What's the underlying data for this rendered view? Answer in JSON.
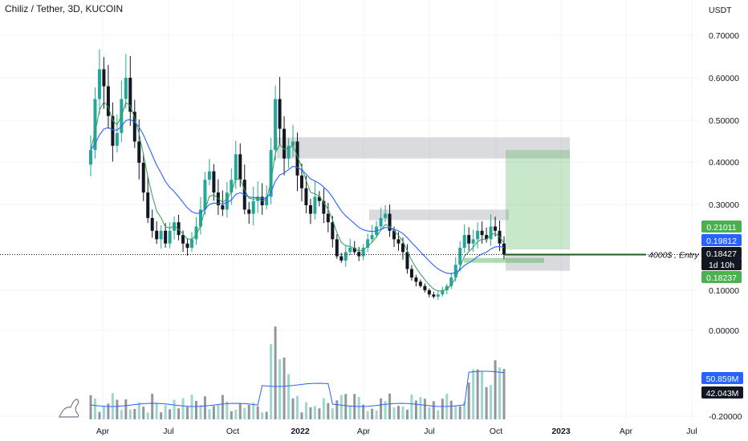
{
  "header": {
    "symbol": "Chiliz / Tether",
    "interval": "3D",
    "exchange": "KUCOIN"
  },
  "colors": {
    "up": "#26a69a",
    "down": "#131722",
    "ema_fast": "#2e9e4f",
    "ema_slow": "#2962ff",
    "volume_ma": "#2962ff",
    "zone": "#9598a1",
    "target": "#4caf50",
    "tag_green": "#4caf50",
    "tag_blue": "#2962ff",
    "tag_black": "#131722"
  },
  "chart_data": {
    "type": "candlestick",
    "currency_label": "USDT",
    "y_ticks": [
      "0.70000",
      "0.60000",
      "0.50000",
      "0.40000",
      "0.30000",
      "0.10000",
      "0.00000",
      "-0.20000"
    ],
    "x_ticks": [
      "Apr",
      "Jul",
      "Oct",
      "2022",
      "Apr",
      "Jul",
      "Oct",
      "2023",
      "Apr",
      "Jul"
    ],
    "ylim": [
      -0.2,
      0.76
    ],
    "price_tags": {
      "ema_fast": "0.21011",
      "ema_slow": "0.19812",
      "last_price": "0.18427",
      "countdown": "1d 10h",
      "entry_level": "0.18237"
    },
    "volume_tags": {
      "volume_ma": "50.859M",
      "volume_last": "42.043M"
    },
    "annotation": "4000$ , Entry",
    "series": [
      {
        "name": "price",
        "values": [
          0.43,
          0.55,
          0.62,
          0.58,
          0.51,
          0.44,
          0.47,
          0.55,
          0.6,
          0.52,
          0.45,
          0.4,
          0.33,
          0.27,
          0.24,
          0.22,
          0.24,
          0.21,
          0.24,
          0.26,
          0.23,
          0.21,
          0.2,
          0.22,
          0.25,
          0.29,
          0.36,
          0.38,
          0.33,
          0.3,
          0.29,
          0.33,
          0.36,
          0.42,
          0.36,
          0.29,
          0.28,
          0.31,
          0.32,
          0.3,
          0.32,
          0.43,
          0.55,
          0.48,
          0.41,
          0.44,
          0.45,
          0.37,
          0.34,
          0.3,
          0.28,
          0.32,
          0.31,
          0.28,
          0.26,
          0.22,
          0.18,
          0.17,
          0.19,
          0.2,
          0.19,
          0.18,
          0.2,
          0.22,
          0.23,
          0.25,
          0.27,
          0.28,
          0.24,
          0.22,
          0.21,
          0.19,
          0.15,
          0.13,
          0.12,
          0.11,
          0.1,
          0.09,
          0.085,
          0.09,
          0.1,
          0.11,
          0.13,
          0.16,
          0.2,
          0.23,
          0.21,
          0.22,
          0.24,
          0.23,
          0.22,
          0.25,
          0.24,
          0.21,
          0.184
        ]
      }
    ],
    "zones": [
      {
        "name": "upper-supply",
        "y_top": 0.46,
        "y_bottom": 0.41
      },
      {
        "name": "mid-supply",
        "y_top": 0.29,
        "y_bottom": 0.265
      },
      {
        "name": "target",
        "y_top": 0.43,
        "y_bottom": 0.196
      },
      {
        "name": "stop",
        "y_top": 0.184,
        "y_bottom": 0.146
      }
    ]
  }
}
